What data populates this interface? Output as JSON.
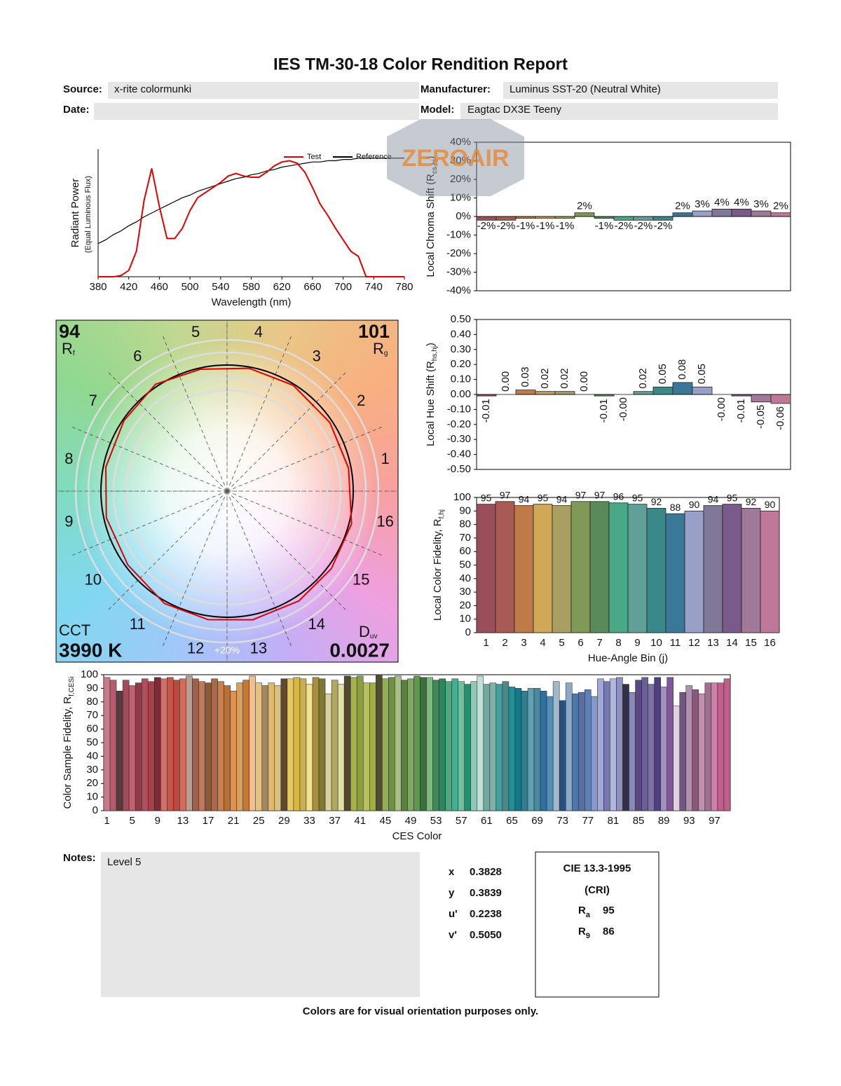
{
  "header": {
    "title": "IES TM-30-18 Color Rendition Report",
    "source_label": "Source:",
    "source": "x-rite colormunki",
    "manufacturer_label": "Manufacturer:",
    "manufacturer": "Luminus SST-20 (Neutral White)",
    "date_label": "Date:",
    "model_label": "Model:",
    "model": "Eagtac DX3E Teeny"
  },
  "watermark": "ZEROAIR",
  "chart_data": [
    {
      "type": "line",
      "xlabel": "Wavelength (nm)",
      "ylabel": "Radiant Power",
      "ylabel_note": "(Equal Luminous Flux)",
      "x": [
        380,
        390,
        400,
        410,
        420,
        430,
        440,
        450,
        460,
        470,
        480,
        490,
        500,
        510,
        520,
        530,
        540,
        550,
        560,
        570,
        580,
        590,
        600,
        610,
        620,
        630,
        640,
        650,
        660,
        670,
        680,
        690,
        700,
        710,
        720,
        730,
        740,
        750,
        760,
        770,
        780
      ],
      "series": [
        {
          "name": "Test",
          "color": "#e00000",
          "values": [
            0,
            0,
            0,
            0.01,
            0.05,
            0.2,
            0.6,
            0.85,
            0.55,
            0.3,
            0.3,
            0.38,
            0.52,
            0.62,
            0.66,
            0.7,
            0.74,
            0.79,
            0.81,
            0.79,
            0.78,
            0.78,
            0.82,
            0.87,
            0.9,
            0.91,
            0.89,
            0.82,
            0.7,
            0.57,
            0.48,
            0.38,
            0.29,
            0.2,
            0.16,
            0,
            0,
            0,
            0,
            0,
            0
          ]
        },
        {
          "name": "Reference",
          "color": "#000000",
          "values": [
            0.26,
            0.29,
            0.33,
            0.36,
            0.4,
            0.43,
            0.47,
            0.5,
            0.53,
            0.56,
            0.59,
            0.62,
            0.64,
            0.67,
            0.69,
            0.71,
            0.73,
            0.75,
            0.77,
            0.78,
            0.8,
            0.81,
            0.83,
            0.84,
            0.86,
            0.87,
            0.88,
            0.89,
            0.9,
            0.9,
            0.91,
            0.91,
            0.92,
            0.92,
            0.93,
            0.93,
            0.93,
            0.93,
            0.93,
            0.93,
            0.93
          ]
        }
      ],
      "xlim": [
        380,
        780
      ],
      "xticks": [
        380,
        420,
        460,
        500,
        540,
        580,
        620,
        660,
        700,
        740,
        780
      ],
      "ylim": [
        0,
        1
      ],
      "legend": "top-right"
    },
    {
      "type": "bar",
      "ylabel": "Local Chroma Shift (R",
      "ylabel_sub": "cs,hj",
      "ylabel_end": ")",
      "values": [
        -2,
        -2,
        -1,
        -1,
        -1,
        2,
        -1,
        -2,
        -2,
        -2,
        2,
        3,
        4,
        4,
        3,
        2
      ],
      "value_labels": [
        "-2%",
        "-2%",
        "-1%",
        "-1%",
        "-1%",
        "2%",
        "-1%",
        "-2%",
        "-2%",
        "-2%",
        "2%",
        "3%",
        "4%",
        "4%",
        "3%",
        "2%"
      ],
      "colors": [
        "#a0505a",
        "#a85a50",
        "#c07a48",
        "#c8a058",
        "#a8a060",
        "#809858",
        "#5a8a5a",
        "#48a888",
        "#60a098",
        "#3a8888",
        "#3a7898",
        "#98a0c8",
        "#807898",
        "#7a5a8a",
        "#a07898",
        "#c07898"
      ],
      "ylim": [
        -40,
        40
      ],
      "yticks": [
        {
          "value": 40,
          "label": "40%"
        },
        {
          "value": 30,
          "label": "30%"
        },
        {
          "value": 20,
          "label": "20%"
        },
        {
          "value": 10,
          "label": "10%"
        },
        {
          "value": 0,
          "label": "0%"
        },
        {
          "value": -10,
          "label": "-10%"
        },
        {
          "value": -20,
          "label": "-20%"
        },
        {
          "value": -30,
          "label": "-30%"
        },
        {
          "value": -40,
          "label": "-40%"
        }
      ]
    },
    {
      "type": "bar",
      "ylabel": "Local Hue Shift (R",
      "ylabel_sub": "hs,hj",
      "ylabel_end": ")",
      "value_label_rotation": -90,
      "values": [
        -0.01,
        0,
        0.03,
        0.02,
        0.02,
        0,
        -0.01,
        0,
        0.02,
        0.05,
        0.08,
        0.05,
        0,
        -0.01,
        -0.05,
        -0.06
      ],
      "value_labels": [
        "-0.01",
        "0.00",
        "0.03",
        "0.02",
        "0.02",
        "0.00",
        "-0.01",
        "-0.00",
        "0.02",
        "0.05",
        "0.08",
        "0.05",
        "-0.00",
        "-0.01",
        "-0.05",
        "-0.06"
      ],
      "colors": [
        "#a0505a",
        "#a85a50",
        "#c07a48",
        "#c8a058",
        "#a8a060",
        "#809858",
        "#5a8a5a",
        "#48a888",
        "#60a098",
        "#3a8888",
        "#3a7898",
        "#98a0c8",
        "#807898",
        "#7a5a8a",
        "#a07898",
        "#c07898"
      ],
      "ylim": [
        -0.5,
        0.5
      ],
      "yticks": [
        {
          "value": 0.5,
          "label": "0.50"
        },
        {
          "value": 0.4,
          "label": "0.40"
        },
        {
          "value": 0.3,
          "label": "0.30"
        },
        {
          "value": 0.2,
          "label": "0.20"
        },
        {
          "value": 0.1,
          "label": "0.10"
        },
        {
          "value": 0,
          "label": "0.00"
        },
        {
          "value": -0.1,
          "label": "-0.10"
        },
        {
          "value": -0.2,
          "label": "-0.20"
        },
        {
          "value": -0.3,
          "label": "-0.30"
        },
        {
          "value": -0.4,
          "label": "-0.40"
        },
        {
          "value": -0.5,
          "label": "-0.50"
        }
      ]
    },
    {
      "type": "bar",
      "xlabel": "Hue-Angle Bin (j)",
      "ylabel": "Local Color Fidelity, R",
      "ylabel_sub": "f,hj",
      "categories": [
        1,
        2,
        3,
        4,
        5,
        6,
        7,
        8,
        9,
        10,
        11,
        12,
        13,
        14,
        15,
        16
      ],
      "values": [
        95,
        97,
        94,
        95,
        94,
        97,
        97,
        96,
        95,
        92,
        88,
        90,
        94,
        95,
        92,
        90
      ],
      "show_value_labels": true,
      "colors": [
        "#9a4e5a",
        "#a85a55",
        "#c07a48",
        "#d0a858",
        "#a8a060",
        "#809858",
        "#5a8a5a",
        "#48a888",
        "#60a098",
        "#3a8888",
        "#3a7898",
        "#98a0c8",
        "#807898",
        "#7a5a8a",
        "#a07898",
        "#c07898"
      ],
      "ylim": [
        0,
        100
      ],
      "yticks": [
        0,
        10,
        20,
        30,
        40,
        50,
        60,
        70,
        80,
        90,
        100
      ]
    },
    {
      "type": "vector",
      "rf": 94,
      "rf_label": "R",
      "rf_sub": "f",
      "rg": 101,
      "rg_label": "R",
      "rg_sub": "g",
      "cct_label": "CCT",
      "cct": {
        "value": 3990,
        "label": "3990 K"
      },
      "duv_label": "D",
      "duv_sub": "uv",
      "duv": 0.0027,
      "ring_label": "+20%",
      "reference_color": "#000000",
      "test_color": "#e00000"
    },
    {
      "type": "bar",
      "xlabel": "CES Color",
      "ylabel": "Color Sample Fidelity, R",
      "ylabel_sub": "f,CESi",
      "categories": [
        1,
        null,
        null,
        null,
        5,
        null,
        null,
        null,
        9,
        null,
        null,
        null,
        13,
        null,
        null,
        null,
        17,
        null,
        null,
        null,
        21,
        null,
        null,
        null,
        25,
        null,
        null,
        null,
        29,
        null,
        null,
        null,
        33,
        null,
        null,
        null,
        37,
        null,
        null,
        null,
        41,
        null,
        null,
        null,
        45,
        null,
        null,
        null,
        49,
        null,
        null,
        null,
        53,
        null,
        null,
        null,
        57,
        null,
        null,
        null,
        61,
        null,
        null,
        null,
        65,
        null,
        null,
        null,
        69,
        null,
        null,
        null,
        73,
        null,
        null,
        null,
        77,
        null,
        null,
        null,
        81,
        null,
        null,
        null,
        85,
        null,
        null,
        null,
        89,
        null,
        null,
        null,
        93,
        null,
        null,
        null,
        97,
        null,
        null
      ],
      "values": [
        98,
        96,
        88,
        96,
        92,
        94,
        97,
        95,
        98,
        97,
        98,
        96,
        97,
        99,
        97,
        95,
        94,
        97,
        95,
        92,
        88,
        94,
        96,
        99,
        94,
        92,
        94,
        92,
        97,
        97,
        98,
        97,
        93,
        98,
        97,
        86,
        96,
        93,
        99,
        98,
        99,
        94,
        94,
        100,
        97,
        98,
        99,
        96,
        97,
        99,
        98,
        98,
        96,
        97,
        95,
        97,
        95,
        93,
        95,
        99,
        93,
        94,
        93,
        95,
        91,
        90,
        88,
        90,
        90,
        88,
        84,
        95,
        81,
        94,
        86,
        87,
        89,
        84,
        97,
        95,
        97,
        98,
        93,
        87,
        96,
        98,
        93,
        98,
        91,
        98,
        77,
        87,
        92,
        89,
        86,
        94,
        94,
        94,
        97
      ],
      "colors": [
        "#c87a8a",
        "#b85a6e",
        "#5a3a3e",
        "#a34b5a",
        "#c26070",
        "#8f3c48",
        "#b0505c",
        "#a8404a",
        "#7a2c34",
        "#d0706a",
        "#c8544a",
        "#b84a40",
        "#d86a5a",
        "#b8a090",
        "#a06050",
        "#c07a5a",
        "#8a5a3a",
        "#a86a48",
        "#c88050",
        "#b87038",
        "#e09050",
        "#d8a060",
        "#c87830",
        "#f0c090",
        "#e8c080",
        "#a08860",
        "#e0b868",
        "#d8c080",
        "#604830",
        "#e8c860",
        "#d8b840",
        "#c8b050",
        "#f0e090",
        "#a89040",
        "#807830",
        "#d8d0a0",
        "#b0a860",
        "#e0e0a0",
        "#504830",
        "#a8b050",
        "#8aa040",
        "#b8c060",
        "#a0b040",
        "#505030",
        "#90b058",
        "#709048",
        "#a8c088",
        "#588040",
        "#80a860",
        "#609850",
        "#3a7040",
        "#80b880",
        "#408858",
        "#2a8860",
        "#50a880",
        "#40b090",
        "#70c0a0",
        "#209070",
        "#90c8b8",
        "#c0e0d8",
        "#70a8a0",
        "#80b0a8",
        "#40a0a0",
        "#508888",
        "#209098",
        "#107888",
        "#308090",
        "#60a0b0",
        "#4a8aa0",
        "#3070a0",
        "#5090b8",
        "#a0b8c8",
        "#2a5080",
        "#8aa8c8",
        "#4a78a8",
        "#5870a0",
        "#6080b8",
        "#8898c8",
        "#a0a8d8",
        "#7878b0",
        "#b0b8e0",
        "#9090c0",
        "#303048",
        "#8888b8",
        "#5a4880",
        "#686098",
        "#8070a8",
        "#504080",
        "#a090c0",
        "#805898",
        "#e0d0e0",
        "#705880",
        "#b090b0",
        "#8a5878",
        "#c090b0",
        "#a07090",
        "#d080a8",
        "#c06088",
        "#c06088"
      ],
      "ylim": [
        0,
        100
      ],
      "yticks": [
        0,
        10,
        20,
        30,
        40,
        50,
        60,
        70,
        80,
        90,
        100
      ]
    }
  ],
  "notes": {
    "label": "Notes:",
    "text": "Level 5"
  },
  "chromaticity": [
    {
      "label": "x",
      "value": 0.3828
    },
    {
      "label": "y",
      "value": 0.3839
    },
    {
      "label": "u'",
      "value": 0.2238
    },
    {
      "label": "v'",
      "value": "0.5050"
    }
  ],
  "cri": {
    "title": "CIE 13.3-1995",
    "subtitle": "(CRI)",
    "ra_label": "R",
    "ra_sub": "a",
    "ra": 95,
    "r9_label": "R",
    "r9_sub": "9",
    "r9": 86
  },
  "footer": "Colors are for visual orientation purposes only."
}
